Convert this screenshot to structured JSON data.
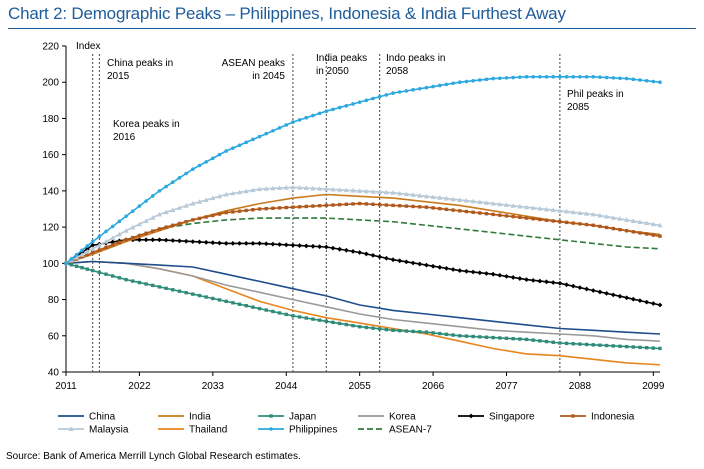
{
  "title": "Chart 2: Demographic Peaks – Philippines, Indonesia & India Furthest Away",
  "source": "Source: Bank of America Merrill Lynch Global Research estimates.",
  "chart_data": {
    "type": "line",
    "ylabel": "Index",
    "ylim": [
      40,
      220
    ],
    "yticks": [
      40,
      60,
      80,
      100,
      120,
      140,
      160,
      180,
      200,
      220
    ],
    "xlim": [
      2011,
      2100
    ],
    "xticks": [
      2011,
      2022,
      2033,
      2044,
      2055,
      2066,
      2077,
      2088,
      2099
    ],
    "grid": false,
    "legend_placement": "bottom",
    "annotations": [
      {
        "year": 2015,
        "lines": [
          "China peaks in",
          "2015"
        ]
      },
      {
        "year": 2016,
        "lines": [
          "Korea peaks in",
          "2016"
        ]
      },
      {
        "year": 2045,
        "lines": [
          "ASEAN peaks",
          "in 2045"
        ]
      },
      {
        "year": 2050,
        "lines": [
          "India peaks",
          "in 2050"
        ]
      },
      {
        "year": 2058,
        "lines": [
          "Indo peaks in",
          "2058"
        ]
      },
      {
        "year": 2085,
        "lines": [
          "Phil peaks in",
          "2085"
        ]
      }
    ],
    "x": [
      2011,
      2015,
      2020,
      2025,
      2030,
      2035,
      2040,
      2045,
      2050,
      2055,
      2060,
      2065,
      2070,
      2075,
      2080,
      2085,
      2090,
      2095,
      2100
    ],
    "series": [
      {
        "name": "China",
        "color": "#1f4e8c",
        "marker": "none",
        "values": [
          100,
          101,
          100,
          99,
          98,
          94,
          90,
          86,
          82,
          77,
          74,
          72,
          70,
          68,
          66,
          64,
          63,
          62,
          61
        ]
      },
      {
        "name": "India",
        "color": "#c87a1e",
        "marker": "none",
        "values": [
          100,
          105,
          112,
          118,
          124,
          129,
          133,
          136,
          138,
          137,
          136,
          134,
          132,
          129,
          126,
          123,
          121,
          118,
          116
        ]
      },
      {
        "name": "Japan",
        "color": "#2e8b7a",
        "marker": "square",
        "values": [
          100,
          96,
          91,
          87,
          83,
          79,
          75,
          71,
          68,
          65,
          63,
          62,
          60,
          59,
          58,
          56,
          55,
          54,
          53
        ]
      },
      {
        "name": "Korea",
        "color": "#9a9a9a",
        "marker": "none",
        "values": [
          100,
          101,
          100,
          97,
          93,
          88,
          84,
          80,
          76,
          72,
          69,
          67,
          65,
          63,
          62,
          61,
          60,
          58,
          57
        ]
      },
      {
        "name": "Singapore",
        "color": "#000000",
        "marker": "diamond",
        "values": [
          100,
          110,
          113,
          113,
          112,
          111,
          111,
          110,
          109,
          106,
          102,
          99,
          96,
          94,
          91,
          89,
          85,
          81,
          77
        ]
      },
      {
        "name": "Indonesia",
        "color": "#b0581c",
        "marker": "square",
        "values": [
          100,
          106,
          113,
          119,
          124,
          128,
          130,
          131,
          132,
          133,
          132,
          131,
          129,
          127,
          125,
          123,
          121,
          118,
          115
        ]
      },
      {
        "name": "Malaysia",
        "color": "#b8c9d8",
        "marker": "triangle",
        "values": [
          100,
          108,
          118,
          127,
          133,
          138,
          141,
          142,
          141,
          140,
          139,
          137,
          135,
          133,
          131,
          129,
          127,
          124,
          121
        ]
      },
      {
        "name": "Thailand",
        "color": "#e8851e",
        "marker": "none",
        "values": [
          100,
          101,
          100,
          97,
          93,
          86,
          79,
          74,
          70,
          67,
          64,
          61,
          57,
          53,
          50,
          49,
          47,
          45,
          44
        ]
      },
      {
        "name": "Philippines",
        "color": "#2ba8df",
        "marker": "circle",
        "values": [
          100,
          112,
          126,
          140,
          152,
          162,
          170,
          178,
          184,
          189,
          194,
          197,
          200,
          202,
          203,
          203,
          203,
          202,
          200
        ]
      },
      {
        "name": "ASEAN-7",
        "color": "#2f7a3a",
        "marker": "dash",
        "values": [
          100,
          106,
          113,
          119,
          122,
          124,
          125,
          125,
          125,
          124,
          123,
          121,
          119,
          117,
          115,
          113,
          111,
          109,
          108
        ]
      }
    ]
  }
}
